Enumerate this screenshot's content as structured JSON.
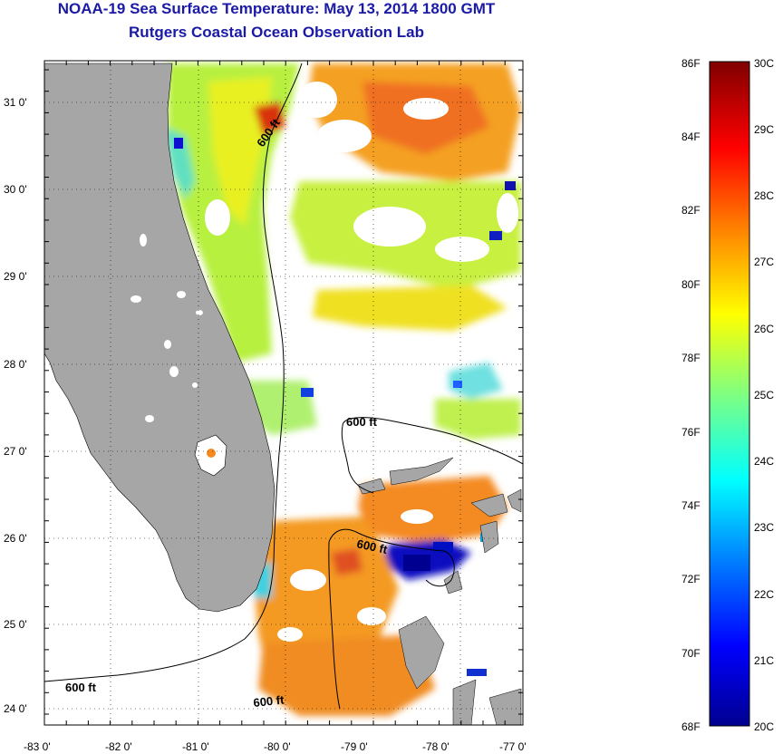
{
  "title": "NOAA-19 Sea Surface Temperature:  May 13, 2014 1800 GMT",
  "subtitle": "Rutgers Coastal Ocean Observation Lab",
  "map": {
    "lon_ticks": [
      "-83 0'",
      "-82 0'",
      "-81 0'",
      "-80 0'",
      "-79 0'",
      "-78 0'",
      "-77 0'"
    ],
    "lat_ticks": [
      "31 0'",
      "30 0'",
      "29 0'",
      "28 0'",
      "27 0'",
      "26 0'",
      "25 0'",
      "24 0'"
    ],
    "lon_range": [
      -83,
      -76.9
    ],
    "lat_range": [
      23.8,
      31.4
    ],
    "grid": "dotted",
    "land_color": "#a6a6a6",
    "no_data_color": "#ffffff",
    "contours": [
      {
        "label": "600 ft"
      },
      {
        "label": "600 ft"
      },
      {
        "label": "600 ft"
      },
      {
        "label": "600 ft"
      },
      {
        "label": "600 ft"
      }
    ]
  },
  "colorbar": {
    "fahrenheit_labels": [
      "86F",
      "84F",
      "82F",
      "80F",
      "78F",
      "76F",
      "74F",
      "72F",
      "70F",
      "68F"
    ],
    "celsius_labels": [
      "30C",
      "29C",
      "28C",
      "27C",
      "26C",
      "25C",
      "24C",
      "23C",
      "22C",
      "21C",
      "20C"
    ],
    "range_c": [
      20,
      30
    ],
    "colors": [
      "#00008f",
      "#0000ff",
      "#0080ff",
      "#00ffff",
      "#80ff80",
      "#ffff00",
      "#ff8000",
      "#ff0000",
      "#800000"
    ]
  }
}
